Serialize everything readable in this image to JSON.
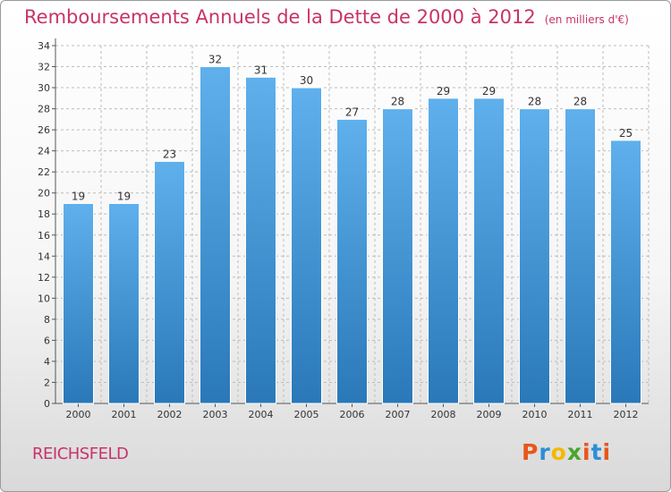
{
  "title": "Remboursements Annuels de la Dette de 2000 à 2012",
  "title_unit": "(en milliers d'€)",
  "commune": "REICHSFELD",
  "logo": {
    "letters": [
      "P",
      "r",
      "o",
      "x",
      "i",
      "t",
      "i"
    ],
    "colors": [
      "#e8561a",
      "#2a8fd6",
      "#f5b800",
      "#4aa52e",
      "#e8561a",
      "#2a8fd6",
      "#e8561a"
    ]
  },
  "colors": {
    "bar_top": "#5fb0ec",
    "bar_bottom": "#2a78b8",
    "title": "#c8336a",
    "grid": "#bcbcbc"
  },
  "chart_data": {
    "type": "bar",
    "categories": [
      "2000",
      "2001",
      "2002",
      "2003",
      "2004",
      "2005",
      "2006",
      "2007",
      "2008",
      "2009",
      "2010",
      "2011",
      "2012"
    ],
    "values": [
      19,
      19,
      23,
      32,
      31,
      30,
      27,
      28,
      29,
      29,
      28,
      28,
      25
    ],
    "yticks": [
      0,
      2,
      4,
      6,
      8,
      10,
      12,
      14,
      16,
      18,
      20,
      22,
      24,
      26,
      28,
      30,
      32,
      34
    ],
    "ylim": [
      0,
      34
    ],
    "grid": true,
    "data_labels": true
  }
}
